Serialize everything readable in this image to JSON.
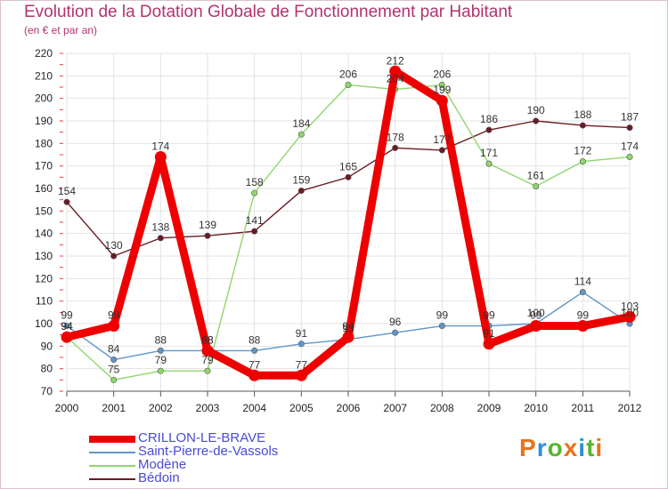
{
  "title": "Evolution de la Dotation Globale de Fonctionnement par Habitant",
  "subtitle": "(en € et par an)",
  "logo": {
    "text": "Proxiti",
    "colors": [
      "#e8731a",
      "#2f8fd4",
      "#58b431",
      "#e8731a",
      "#2f8fd4",
      "#58b431",
      "#e8731a"
    ]
  },
  "chart_data": {
    "type": "line",
    "title": "Evolution de la Dotation Globale de Fonctionnement par Habitant",
    "subtitle": "(en € et par an)",
    "xlabel": "",
    "ylabel": "",
    "x": [
      "2000",
      "2001",
      "2002",
      "2003",
      "2004",
      "2005",
      "2006",
      "2007",
      "2008",
      "2009",
      "2010",
      "2011",
      "2012"
    ],
    "ylim": [
      70,
      220
    ],
    "yticks": [
      70,
      80,
      90,
      100,
      110,
      120,
      130,
      140,
      150,
      160,
      170,
      180,
      190,
      200,
      210,
      220
    ],
    "grid": true,
    "legend_position": "bottom-left",
    "series": [
      {
        "name": "Bédoin",
        "color": "#6b1a24",
        "values": [
          154,
          130,
          138,
          139,
          141,
          159,
          165,
          178,
          177,
          186,
          190,
          188,
          187
        ]
      },
      {
        "name": "Modène",
        "color": "#8fd66b",
        "values": [
          94,
          75,
          79,
          79,
          158,
          184,
          206,
          204,
          206,
          171,
          161,
          172,
          174
        ]
      },
      {
        "name": "Saint-Pierre-de-Vassols",
        "color": "#5f96c8",
        "values": [
          99,
          84,
          88,
          88,
          88,
          91,
          93,
          96,
          99,
          99,
          100,
          114,
          100
        ]
      },
      {
        "name": "CRILLON-LE-BRAVE",
        "color": "#ee0000",
        "values": [
          94,
          99,
          174,
          88,
          77,
          77,
          94,
          212,
          199,
          91,
          99,
          99,
          103
        ]
      }
    ],
    "legend": [
      "CRILLON-LE-BRAVE",
      "Saint-Pierre-de-Vassols",
      "Modène",
      "Bédoin"
    ]
  }
}
